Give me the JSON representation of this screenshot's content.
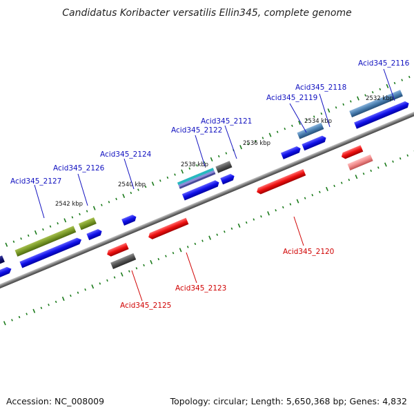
{
  "title": "Candidatus Koribacter versatilis Ellin345, complete genome",
  "footer": {
    "accession": "Accession: NC_008009",
    "topology": "Topology: circular; Length: 5,650,368 bp; Genes: 4,832"
  },
  "colors": {
    "backbone": "#808080",
    "tick": "#1a7a1a",
    "forward_label": "#1010c0",
    "reverse_label": "#d00000",
    "forward_gene": "#1010e8",
    "reverse_gene": "#ee1010",
    "olive_gene": "#7a9a28",
    "gray_gene": "#555555",
    "steel_gene": "#4a7fb0",
    "cyan_gene": "#28b8c0",
    "pink_gene": "#f08a8a"
  },
  "scale_labels": [
    "2532 kbp",
    "2534 kbp",
    "2536 kbp",
    "2538 kbp",
    "2540 kbp",
    "2542 kbp"
  ],
  "gene_labels": {
    "Acid345_2116": "Acid345_2116",
    "Acid345_2118": "Acid345_2118",
    "Acid345_2119": "Acid345_2119",
    "Acid345_2121": "Acid345_2121",
    "Acid345_2122": "Acid345_2122",
    "Acid345_2124": "Acid345_2124",
    "Acid345_2126": "Acid345_2126",
    "Acid345_2127": "Acid345_2127",
    "Acid345_2120": "Acid345_2120",
    "Acid345_2123": "Acid345_2123",
    "Acid345_2125": "Acid345_2125"
  }
}
